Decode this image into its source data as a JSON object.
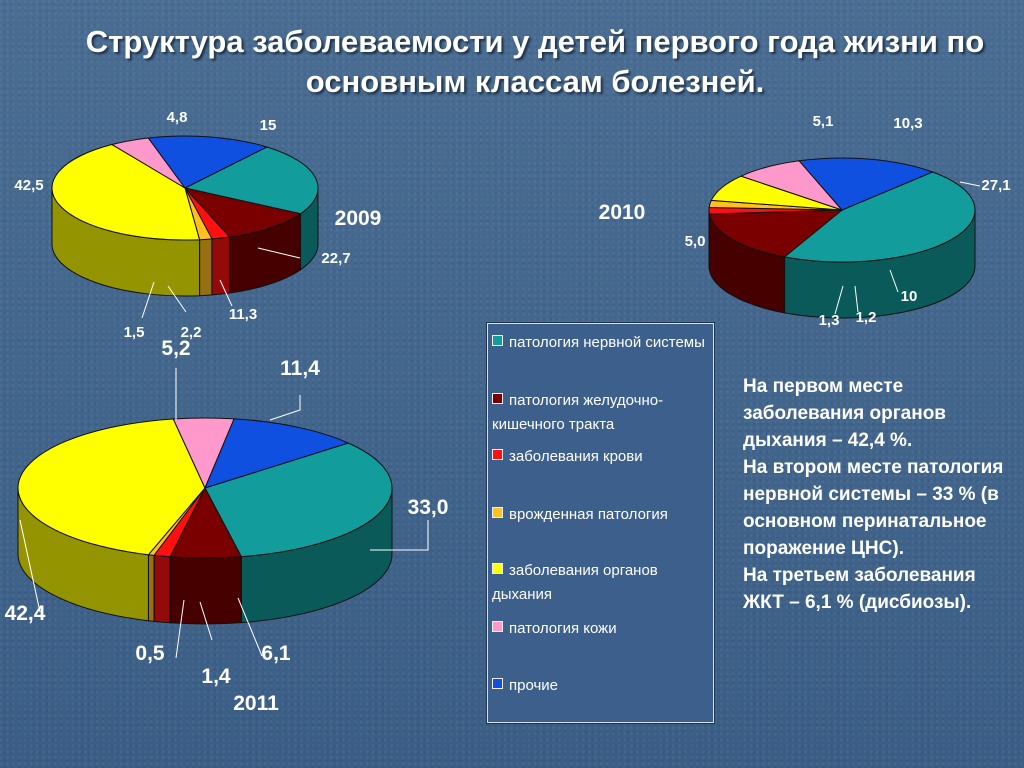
{
  "title": "Структура заболеваемости у детей первого года жизни по основным классам болезней.",
  "chart_data": [
    {
      "type": "pie",
      "year": "2009",
      "values": [
        {
          "category": "патология нервной системы",
          "value": 22.7,
          "label": "22,7"
        },
        {
          "category": "патология желудочно-кишечного тракта",
          "value": 11.3,
          "label": "11,3"
        },
        {
          "category": "заболевания крови",
          "value": 2.2,
          "label": "2,2"
        },
        {
          "category": "врожденная патология",
          "value": 1.5,
          "label": "1,5"
        },
        {
          "category": "заболевания органов дыхания",
          "value": 42.5,
          "label": "42,5"
        },
        {
          "category": "патология кожи",
          "value": 4.8,
          "label": "4,8"
        },
        {
          "category": "прочие",
          "value": 15,
          "label": "15"
        }
      ]
    },
    {
      "type": "pie",
      "year": "2010",
      "values": [
        {
          "category": "патология нервной системы",
          "value": 27.1,
          "label": "27,1"
        },
        {
          "category": "патология желудочно-кишечного тракта",
          "value": 10,
          "label": "10"
        },
        {
          "category": "заболевания крови",
          "value": 1.2,
          "label": "1,2"
        },
        {
          "category": "врожденная патология",
          "value": 1.3,
          "label": "1,3"
        },
        {
          "category": "заболевания органов дыхания",
          "value": 5.0,
          "label": "5,0"
        },
        {
          "category": "патология кожи",
          "value": 5.1,
          "label": "5,1"
        },
        {
          "category": "прочие",
          "value": 10.3,
          "label": "10,3"
        }
      ]
    },
    {
      "type": "pie",
      "year": "2011",
      "values": [
        {
          "category": "патология нервной системы",
          "value": 33.0,
          "label": "33,0"
        },
        {
          "category": "патология желудочно-кишечного тракта",
          "value": 6.1,
          "label": "6,1"
        },
        {
          "category": "заболевания крови",
          "value": 1.4,
          "label": "1,4"
        },
        {
          "category": "врожденная патология",
          "value": 0.5,
          "label": "0,5"
        },
        {
          "category": "заболевания органов дыхания",
          "value": 42.4,
          "label": "42,4"
        },
        {
          "category": "патология кожи",
          "value": 5.2,
          "label": "5,2"
        },
        {
          "category": "прочие",
          "value": 11.4,
          "label": "11,4"
        }
      ]
    }
  ],
  "legend": [
    {
      "text": "патология нервной системы",
      "color": "#129c9c"
    },
    {
      "text": "патология желудочно-кишечного тракта",
      "color": "#7a0000"
    },
    {
      "text": "заболевания крови",
      "color": "#ff1010"
    },
    {
      "text": "врожденная патология",
      "color": "#ffc020"
    },
    {
      "text": "заболевания органов дыхания",
      "color": "#ffff00"
    },
    {
      "text": "патология кожи",
      "color": "#ff99cc"
    },
    {
      "text": "прочие",
      "color": "#1050e0"
    }
  ],
  "note": [
    "На первом месте заболевания органов дыхания – 42,4 %.",
    "На втором месте патология нервной системы – 33 % (в основном перинатальное поражение ЦНС).",
    "На третьем заболевания ЖКТ – 6,1 % (дисбиозы)."
  ]
}
